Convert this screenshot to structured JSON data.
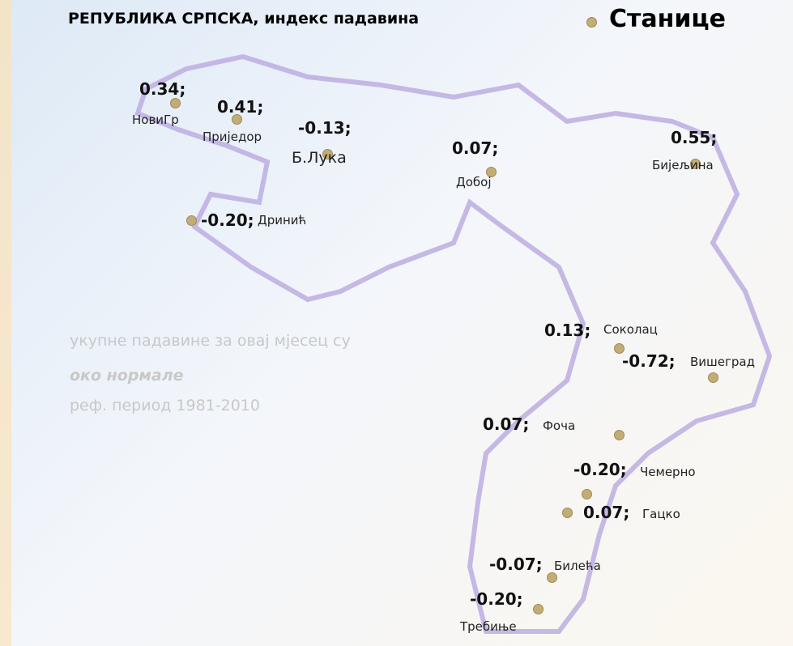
{
  "header": {
    "title": "РЕПУБЛИКА СРПСКА, индекс падавина",
    "legend": "Станице"
  },
  "stations": [
    {
      "value_label": "0.34;",
      "name": "НовиГр"
    },
    {
      "value_label": "0.41;",
      "name": "Приједор"
    },
    {
      "value_label": "-0.13;",
      "name": "Б.Лука"
    },
    {
      "value_label": "0.07;",
      "name": "Добој"
    },
    {
      "value_label": "0.55;",
      "name": "Бијељина"
    },
    {
      "value_label": "-0.20;",
      "name": "Дринић"
    },
    {
      "value_label": "0.13;",
      "name": "Соколац"
    },
    {
      "value_label": "-0.72;",
      "name": "Вишеград"
    },
    {
      "value_label": "0.07;",
      "name": "Фоча"
    },
    {
      "value_label": "-0.20;",
      "name": "Чемерно"
    },
    {
      "value_label": "0.07;",
      "name": "Гацко"
    },
    {
      "value_label": "-0.07;",
      "name": "Билећа"
    },
    {
      "value_label": "-0.20;",
      "name": "Требиње"
    }
  ],
  "note": {
    "line1": "укупне падавине за овај мјесец су",
    "line2": "око нормале",
    "line3": "реф. период 1981-2010"
  }
}
